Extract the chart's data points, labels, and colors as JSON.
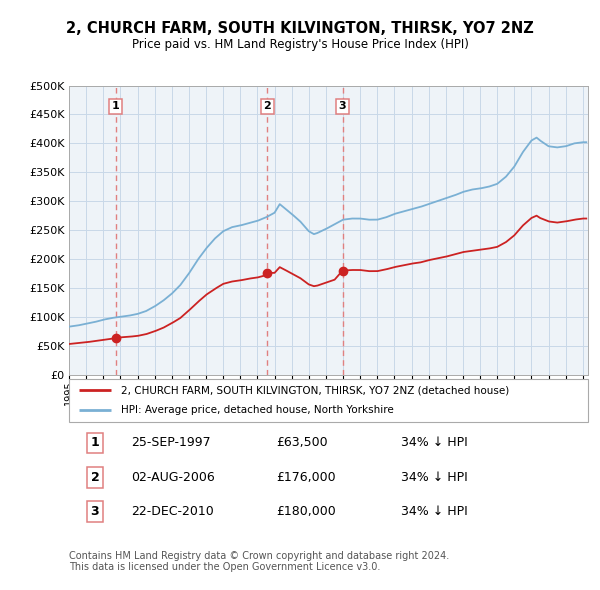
{
  "title": "2, CHURCH FARM, SOUTH KILVINGTON, THIRSK, YO7 2NZ",
  "subtitle": "Price paid vs. HM Land Registry's House Price Index (HPI)",
  "ylim": [
    0,
    500000
  ],
  "yticks": [
    0,
    50000,
    100000,
    150000,
    200000,
    250000,
    300000,
    350000,
    400000,
    450000,
    500000
  ],
  "xlim_start": 1995.0,
  "xlim_end": 2025.3,
  "xticks": [
    1995,
    1996,
    1997,
    1998,
    1999,
    2000,
    2001,
    2002,
    2003,
    2004,
    2005,
    2006,
    2007,
    2008,
    2009,
    2010,
    2011,
    2012,
    2013,
    2014,
    2015,
    2016,
    2017,
    2018,
    2019,
    2020,
    2021,
    2022,
    2023,
    2024,
    2025
  ],
  "sale_dates": [
    1997.73,
    2006.58,
    2010.97
  ],
  "sale_prices": [
    63500,
    176000,
    180000
  ],
  "sale_labels": [
    "1",
    "2",
    "3"
  ],
  "red_line_color": "#cc2222",
  "blue_line_color": "#7ab0d4",
  "vline_color": "#e08080",
  "dot_color": "#cc2222",
  "legend_line1": "2, CHURCH FARM, SOUTH KILVINGTON, THIRSK, YO7 2NZ (detached house)",
  "legend_line2": "HPI: Average price, detached house, North Yorkshire",
  "table_rows": [
    [
      "1",
      "25-SEP-1997",
      "£63,500",
      "34% ↓ HPI"
    ],
    [
      "2",
      "02-AUG-2006",
      "£176,000",
      "34% ↓ HPI"
    ],
    [
      "3",
      "22-DEC-2010",
      "£180,000",
      "34% ↓ HPI"
    ]
  ],
  "footnote": "Contains HM Land Registry data © Crown copyright and database right 2024.\nThis data is licensed under the Open Government Licence v3.0.",
  "background_color": "#ffffff",
  "plot_bg_color": "#eef3f8",
  "grid_color": "#c8d8e8"
}
